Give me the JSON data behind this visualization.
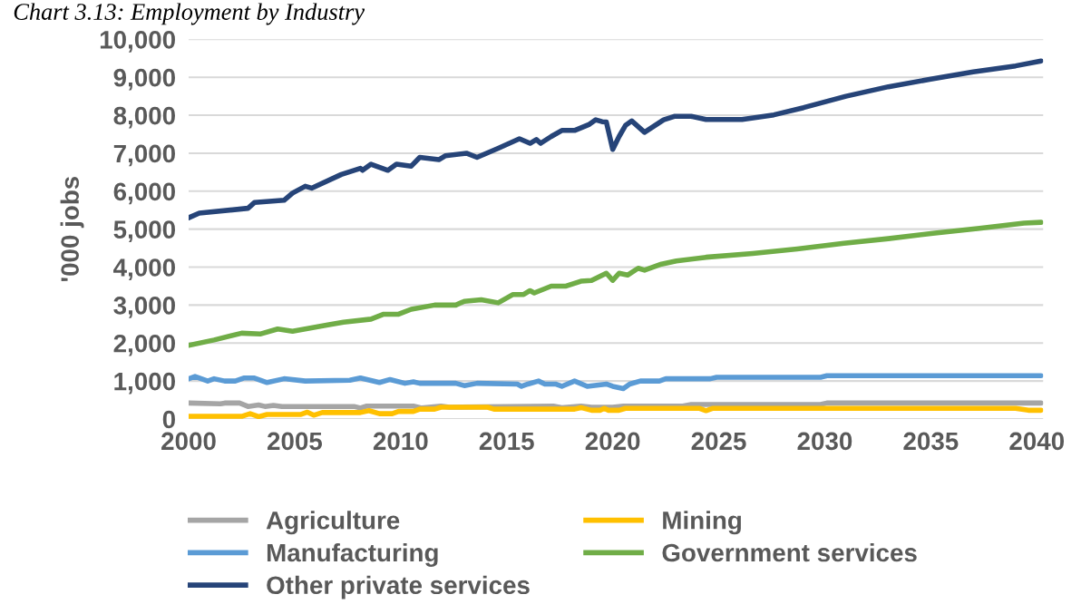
{
  "chart_data": {
    "type": "line",
    "title": "Chart 3.13: Employment by Industry",
    "ylabel": "'000 jobs",
    "xlim": [
      2000,
      2040.3
    ],
    "xticks": [
      2000,
      2005,
      2010,
      2015,
      2020,
      2025,
      2030,
      2035,
      2040
    ],
    "ylim": [
      0,
      10000
    ],
    "yticks": [
      {
        "value": 0,
        "label": "0"
      },
      {
        "value": 1000,
        "label": "1,000"
      },
      {
        "value": 2000,
        "label": "2,000"
      },
      {
        "value": 3000,
        "label": "3,000"
      },
      {
        "value": 4000,
        "label": "4,000"
      },
      {
        "value": 5000,
        "label": "5,000"
      },
      {
        "value": 6000,
        "label": "6,000"
      },
      {
        "value": 7000,
        "label": "7,000"
      },
      {
        "value": 8000,
        "label": "8,000"
      },
      {
        "value": 9000,
        "label": "9,000"
      },
      {
        "value": 10000,
        "label": "10,000"
      }
    ],
    "grid": "y",
    "legend": "bottom",
    "marker": "none",
    "line_style": "solid",
    "series": [
      {
        "name": "Agriculture",
        "color": "#a5a5a5",
        "x": [
          2000,
          2001.5,
          2001.7,
          2002.4,
          2002.8,
          2003.3,
          2003.6,
          2004,
          2004.4,
          2007.8,
          2008.1,
          2008.4,
          2010.6,
          2011,
          2011.9,
          2012.3,
          2017.2,
          2017.6,
          2018.5,
          2019,
          2020,
          2020.5,
          2023.3,
          2023.7,
          2029.8,
          2030.1,
          2040.2
        ],
        "values": [
          420,
          400,
          420,
          420,
          330,
          370,
          330,
          360,
          330,
          330,
          290,
          340,
          340,
          290,
          340,
          310,
          340,
          300,
          340,
          310,
          310,
          340,
          340,
          380,
          380,
          420,
          420
        ]
      },
      {
        "name": "Mining",
        "color": "#ffc000",
        "x": [
          2000,
          2002.5,
          2002.9,
          2003.3,
          2003.7,
          2005.3,
          2005.6,
          2005.9,
          2006.3,
          2008.1,
          2008.5,
          2009.0,
          2009.6,
          2009.9,
          2010.6,
          2010.9,
          2011.6,
          2011.9,
          2014.1,
          2014.4,
          2018.2,
          2018.5,
          2019.0,
          2019.4,
          2019.6,
          2019.8,
          2020.3,
          2020.6,
          2024.1,
          2024.4,
          2024.7,
          2039.0,
          2039.6,
          2040.2
        ],
        "values": [
          70,
          70,
          140,
          60,
          120,
          120,
          180,
          100,
          170,
          170,
          220,
          140,
          140,
          200,
          200,
          260,
          260,
          310,
          310,
          260,
          260,
          300,
          230,
          230,
          280,
          230,
          230,
          280,
          280,
          220,
          280,
          280,
          230,
          230
        ]
      },
      {
        "name": "Manufacturing",
        "color": "#5b9bd5",
        "x": [
          2000,
          2000.3,
          2000.9,
          2001.2,
          2001.7,
          2002.2,
          2002.6,
          2003.1,
          2003.7,
          2004.5,
          2005.5,
          2007.6,
          2008.1,
          2009.0,
          2009.5,
          2010.2,
          2010.6,
          2010.9,
          2012.6,
          2013.0,
          2013.6,
          2015.5,
          2015.7,
          2016.0,
          2016.5,
          2016.8,
          2017.3,
          2017.6,
          2018.2,
          2018.8,
          2019.7,
          2020.0,
          2020.5,
          2020.8,
          2021.3,
          2022.2,
          2022.5,
          2024.6,
          2024.9,
          2029.8,
          2030.1,
          2040.2
        ],
        "values": [
          1060,
          1120,
          1000,
          1060,
          1000,
          1000,
          1080,
          1080,
          960,
          1060,
          1000,
          1020,
          1080,
          960,
          1040,
          940,
          980,
          940,
          940,
          880,
          940,
          920,
          860,
          920,
          1000,
          920,
          920,
          860,
          1000,
          860,
          920,
          860,
          800,
          920,
          1000,
          1000,
          1060,
          1060,
          1100,
          1100,
          1140,
          1140
        ]
      },
      {
        "name": "Government services",
        "color": "#70ad47",
        "x": [
          2000.0,
          2001.2,
          2002.5,
          2003.4,
          2004.2,
          2004.9,
          2006.5,
          2007.3,
          2008.6,
          2009.2,
          2009.9,
          2010.5,
          2011.6,
          2012.6,
          2013.0,
          2013.8,
          2014.6,
          2015.3,
          2015.8,
          2016.1,
          2016.3,
          2017.1,
          2017.8,
          2018.5,
          2019.0,
          2019.7,
          2020.0,
          2020.3,
          2020.7,
          2021.2,
          2021.5,
          2022.3,
          2023.0,
          2024.4,
          2026.6,
          2028.7,
          2030.9,
          2033.0,
          2035.1,
          2037.3,
          2039.4,
          2040.2
        ],
        "values": [
          1940,
          2080,
          2260,
          2240,
          2370,
          2310,
          2470,
          2550,
          2630,
          2760,
          2760,
          2890,
          3000,
          3000,
          3100,
          3140,
          3060,
          3280,
          3280,
          3380,
          3320,
          3500,
          3500,
          3630,
          3650,
          3840,
          3650,
          3840,
          3790,
          3970,
          3920,
          4080,
          4160,
          4260,
          4360,
          4480,
          4630,
          4750,
          4890,
          5020,
          5160,
          5180
        ]
      },
      {
        "name": "Other private services",
        "color": "#264478",
        "x": [
          2000,
          2000.5,
          2002.8,
          2003.1,
          2004.5,
          2004.9,
          2005.5,
          2005.8,
          2007.2,
          2008.1,
          2008.2,
          2008.6,
          2009.4,
          2009.8,
          2010.5,
          2010.9,
          2011.8,
          2012.1,
          2013.1,
          2013.6,
          2014.6,
          2015.6,
          2016.1,
          2016.4,
          2016.6,
          2017.1,
          2017.6,
          2018.2,
          2018.9,
          2019.2,
          2019.5,
          2019.7,
          2020.0,
          2020.3,
          2020.6,
          2020.9,
          2021.5,
          2022.4,
          2022.9,
          2023.7,
          2024.4,
          2026.1,
          2027.6,
          2029.0,
          2031.0,
          2033.0,
          2035.0,
          2037.0,
          2039.0,
          2040.2
        ],
        "values": [
          5300,
          5420,
          5550,
          5700,
          5760,
          5950,
          6130,
          6080,
          6440,
          6600,
          6550,
          6710,
          6550,
          6710,
          6660,
          6890,
          6830,
          6930,
          7000,
          6890,
          7130,
          7380,
          7260,
          7360,
          7260,
          7440,
          7600,
          7600,
          7760,
          7880,
          7830,
          7820,
          7100,
          7440,
          7730,
          7850,
          7550,
          7880,
          7970,
          7970,
          7890,
          7890,
          8010,
          8200,
          8500,
          8750,
          8950,
          9140,
          9300,
          9430
        ]
      }
    ]
  }
}
